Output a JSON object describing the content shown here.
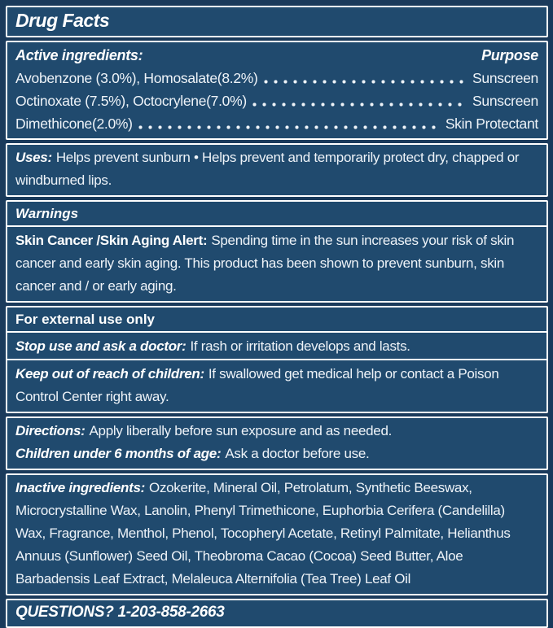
{
  "label": {
    "title": "Drug Facts",
    "colors": {
      "background": "#1a3a5b",
      "panel": "#204a6e",
      "border": "#ffffff",
      "text": "#eef3f8"
    },
    "active": {
      "heading": "Active ingredients:",
      "purpose_heading": "Purpose",
      "rows": [
        {
          "ingredient": "Avobenzone (3.0%), Homosalate(8.2%)",
          "purpose": "Sunscreen"
        },
        {
          "ingredient": "Octinoxate (7.5%), Octocrylene(7.0%)",
          "purpose": "Sunscreen"
        },
        {
          "ingredient": "Dimethicone(2.0%)",
          "purpose": "Skin Protectant"
        }
      ]
    },
    "uses": {
      "heading": "Uses:",
      "text": "Helps prevent sunburn • Helps prevent and temporarily protect dry, chapped or windburned lips."
    },
    "warnings": {
      "heading": "Warnings",
      "alert_heading": "Skin Cancer /Skin Aging Alert:",
      "alert_text": "Spending time in the sun increases your risk of skin cancer and early skin aging. This product has been shown to prevent sunburn, skin cancer and / or early aging."
    },
    "external": {
      "heading": "For external use only",
      "stop_heading": "Stop use and ask a doctor:",
      "stop_text": "If rash or irritation develops and lasts.",
      "keep_heading": "Keep out of reach of children:",
      "keep_text": "If swallowed get medical help or contact a Poison Control Center right away."
    },
    "directions": {
      "heading": "Directions:",
      "text": "Apply liberally before sun exposure and as needed.",
      "children_heading": "Children under 6 months of age:",
      "children_text": "Ask a doctor before use."
    },
    "inactive": {
      "heading": "Inactive ingredients:",
      "text": "Ozokerite, Mineral Oil, Petrolatum, Synthetic Beeswax, Microcrystalline Wax, Lanolin, Phenyl Trimethicone, Euphorbia Cerifera (Candelilla) Wax, Fragrance, Menthol, Phenol, Tocopheryl Acetate, Retinyl Palmitate, Helianthus Annuus (Sunflower) Seed Oil, Theobroma Cacao (Cocoa) Seed Butter, Aloe Barbadensis Leaf Extract, Melaleuca Alternifolia (Tea Tree) Leaf Oil"
    },
    "questions": {
      "text": "QUESTIONS? 1-203-858-2663"
    }
  }
}
